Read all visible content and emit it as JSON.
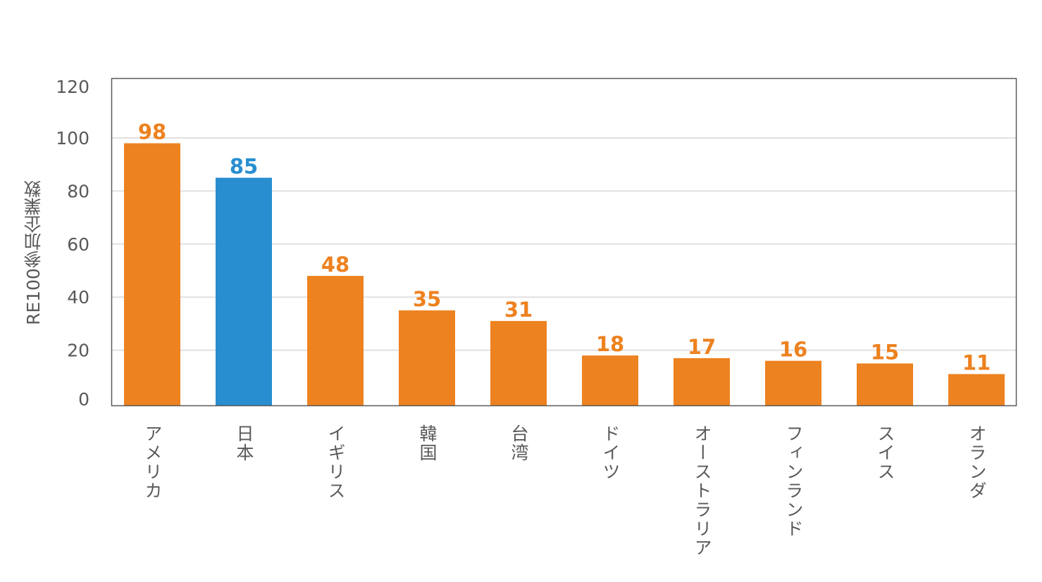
{
  "chart_data": {
    "type": "bar",
    "title": "",
    "xlabel": "",
    "ylabel": "RE100参加企業数",
    "ylim": [
      0,
      120
    ],
    "yticks": [
      0,
      20,
      40,
      60,
      80,
      100,
      120
    ],
    "grid": true,
    "categories": [
      "アメリカ",
      "日本",
      "イギリス",
      "韓国",
      "台湾",
      "ドイツ",
      "オーストラリア",
      "フィンランド",
      "スイス",
      "オランダ"
    ],
    "values": [
      98,
      85,
      48,
      35,
      31,
      18,
      17,
      16,
      15,
      11
    ],
    "highlight_category": "日本",
    "colors": {
      "default": "#ED8220",
      "highlight": "#288ED0",
      "axis": "#595959",
      "grid": "#E0E0E0"
    }
  }
}
